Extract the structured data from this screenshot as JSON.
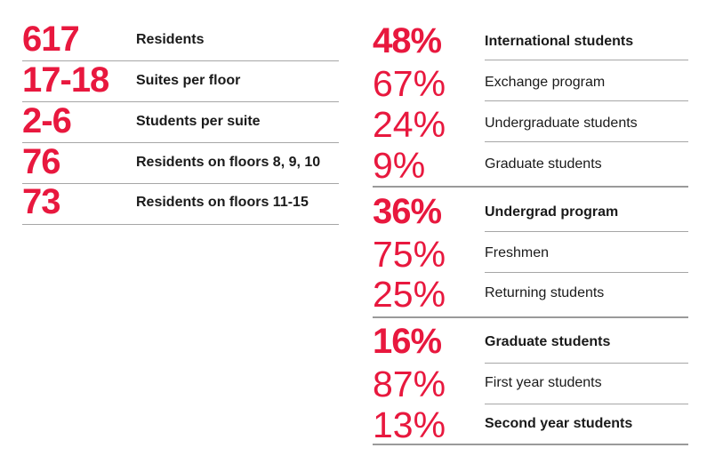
{
  "left_stats": [
    {
      "value": "617",
      "label": "Residents"
    },
    {
      "value": "17-18",
      "label": "Suites per floor"
    },
    {
      "value": "2-6",
      "label": "Students per suite"
    },
    {
      "value": "76",
      "label": "Residents on floors 8, 9, 10"
    },
    {
      "value": "73",
      "label": "Residents on floors 11-15"
    }
  ],
  "right_groups": [
    {
      "value": "48%",
      "label": "International students",
      "items": [
        {
          "value": "67%",
          "label": "Exchange program"
        },
        {
          "value": "24%",
          "label": "Undergraduate students"
        },
        {
          "value": "9%",
          "label": "Graduate students"
        }
      ]
    },
    {
      "value": "36%",
      "label": "Undergrad program",
      "items": [
        {
          "value": "75%",
          "label": "Freshmen"
        },
        {
          "value": "25%",
          "label": "Returning students"
        }
      ]
    },
    {
      "value": "16%",
      "label": "Graduate students",
      "items": [
        {
          "value": "87%",
          "label": "First year students"
        },
        {
          "value": "13%",
          "label": "Second year students",
          "bold": true
        }
      ]
    }
  ],
  "colors": {
    "accent": "#e8183e",
    "text": "#1a1a1a",
    "rule": "#a6a6a6"
  }
}
